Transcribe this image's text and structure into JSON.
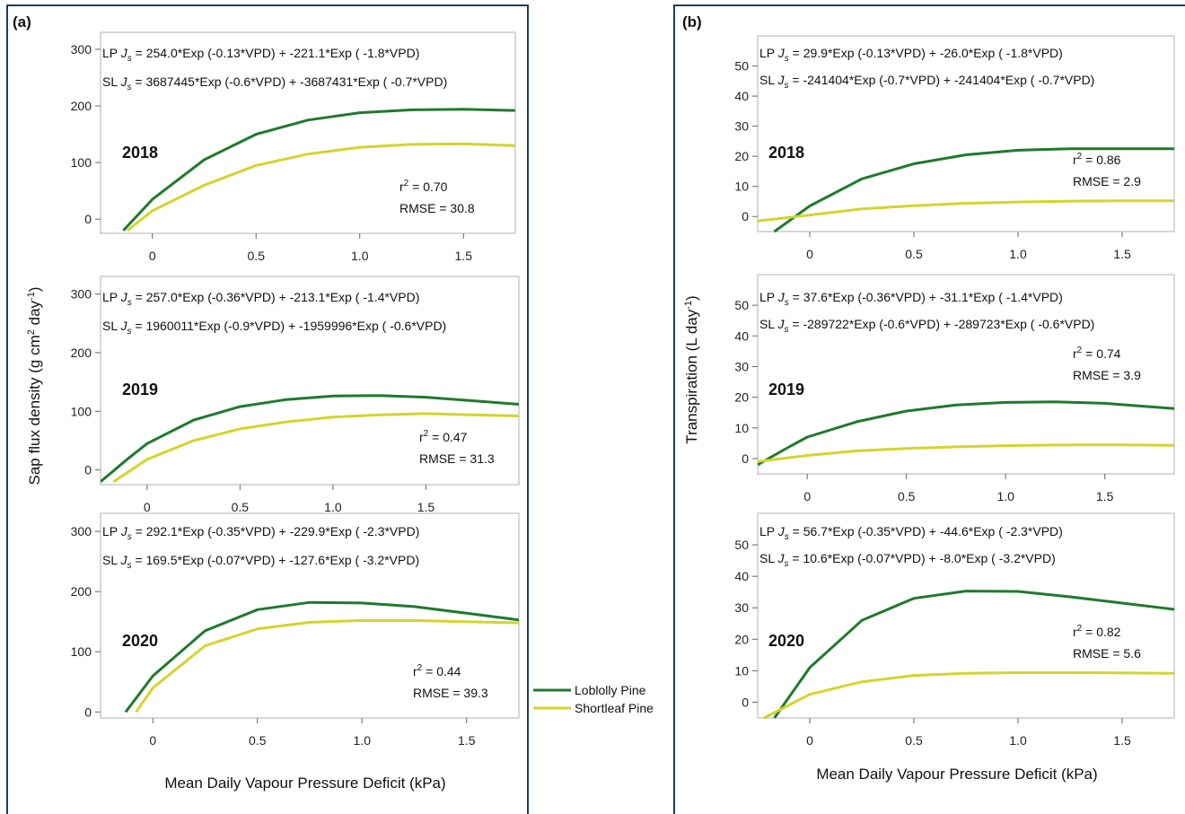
{
  "colors": {
    "loblolly": "#1f7a2e",
    "shortleaf": "#d4d42c",
    "frame": "#1e3a5f",
    "plot_border": "#b0b0b0"
  },
  "legend": {
    "loblolly": "Loblolly Pine",
    "shortleaf": "Shortleaf Pine"
  },
  "panels": [
    {
      "label": "(a)",
      "ylabel_main": "Sap flux density (g cm",
      "ylabel_sup1": "2",
      "ylabel_mid": " day",
      "ylabel_sup2": "-1",
      "ylabel_end": ")",
      "xlabel": "Mean Daily Vapour Pressure Deficit (kPa)"
    },
    {
      "label": "(b)",
      "ylabel_main": "Transpiration (L day",
      "ylabel_sup1": "-1",
      "ylabel_end": ")",
      "xlabel": "Mean Daily Vapour Pressure Deficit (kPa)"
    }
  ],
  "chart_data": [
    {
      "type": "line",
      "panel": "a",
      "year": "2018",
      "xlim": [
        -0.25,
        1.75
      ],
      "ylim": [
        -25,
        330
      ],
      "xticks": [
        "0",
        "0.5",
        "1.0",
        "1.5"
      ],
      "yticks": [
        "0",
        "100",
        "200",
        "300"
      ],
      "equations": {
        "lp": {
          "prefix": "LP ",
          "var": "J",
          "sub": "s",
          "rest": " = 254.0*Exp (-0.13*VPD) + -221.1*Exp ( -1.8*VPD)"
        },
        "sl": {
          "prefix": "SL ",
          "var": "J",
          "sub": "s",
          "rest": " = 3687445*Exp (-0.6*VPD) + -3687431*Exp ( -0.7*VPD)"
        }
      },
      "r2": "= 0.70",
      "rmse": "RMSE = 30.8",
      "series": [
        {
          "name": "Loblolly Pine",
          "x": [
            -0.14,
            0,
            0.25,
            0.5,
            0.75,
            1.0,
            1.25,
            1.5,
            1.75
          ],
          "y": [
            -20,
            35,
            105,
            150,
            175,
            188,
            193,
            194,
            192
          ]
        },
        {
          "name": "Shortleaf Pine",
          "x": [
            -0.12,
            0,
            0.25,
            0.5,
            0.75,
            1.0,
            1.25,
            1.5,
            1.75
          ],
          "y": [
            -20,
            15,
            60,
            95,
            115,
            127,
            132,
            133,
            130
          ]
        }
      ]
    },
    {
      "type": "line",
      "panel": "a",
      "year": "2019",
      "xlim": [
        -0.25,
        2.0
      ],
      "ylim": [
        -25,
        330
      ],
      "xticks": [
        "0",
        "0.5",
        "1.0",
        "1.5"
      ],
      "yticks": [
        "0",
        "100",
        "200",
        "300"
      ],
      "equations": {
        "lp": {
          "prefix": "LP ",
          "var": "J",
          "sub": "s",
          "rest": " = 257.0*Exp (-0.36*VPD) + -213.1*Exp ( -1.4*VPD)"
        },
        "sl": {
          "prefix": "SL ",
          "var": "J",
          "sub": "s",
          "rest": " = 1960011*Exp (-0.9*VPD) + -1959996*Exp ( -0.6*VPD)"
        }
      },
      "r2": "= 0.47",
      "rmse": "RMSE = 31.3",
      "series": [
        {
          "name": "Loblolly Pine",
          "x": [
            -0.25,
            -0.1,
            0,
            0.25,
            0.5,
            0.75,
            1.0,
            1.25,
            1.5,
            1.75,
            2.0
          ],
          "y": [
            -20,
            20,
            45,
            85,
            108,
            120,
            126,
            127,
            124,
            118,
            112
          ]
        },
        {
          "name": "Shortleaf Pine",
          "x": [
            -0.18,
            0,
            0.25,
            0.5,
            0.75,
            1.0,
            1.25,
            1.5,
            1.75,
            2.0
          ],
          "y": [
            -20,
            18,
            50,
            70,
            82,
            90,
            94,
            96,
            94,
            92
          ]
        }
      ]
    },
    {
      "type": "line",
      "panel": "a",
      "year": "2020",
      "xlim": [
        -0.25,
        1.75
      ],
      "ylim": [
        -10,
        330
      ],
      "xticks": [
        "0",
        "0.5",
        "1.0",
        "1.5"
      ],
      "yticks": [
        "0",
        "100",
        "200",
        "300"
      ],
      "equations": {
        "lp": {
          "prefix": "LP ",
          "var": "J",
          "sub": "s",
          "rest": " = 292.1*Exp (-0.35*VPD) + -229.9*Exp ( -2.3*VPD)"
        },
        "sl": {
          "prefix": "SL ",
          "var": "J",
          "sub": "s",
          "rest": " = 169.5*Exp (-0.07*VPD) + -127.6*Exp ( -3.2*VPD)"
        }
      },
      "r2": "= 0.44",
      "rmse": "RMSE = 39.3",
      "series": [
        {
          "name": "Loblolly Pine",
          "x": [
            -0.13,
            0,
            0.25,
            0.5,
            0.75,
            1.0,
            1.25,
            1.5,
            1.75
          ],
          "y": [
            0,
            60,
            135,
            170,
            182,
            181,
            175,
            164,
            153
          ]
        },
        {
          "name": "Shortleaf Pine",
          "x": [
            -0.08,
            0,
            0.25,
            0.5,
            0.75,
            1.0,
            1.25,
            1.5,
            1.75
          ],
          "y": [
            0,
            40,
            110,
            138,
            149,
            152,
            152,
            150,
            148
          ]
        }
      ]
    },
    {
      "type": "line",
      "panel": "b",
      "year": "2018",
      "xlim": [
        -0.25,
        1.75
      ],
      "ylim": [
        -5,
        60
      ],
      "xticks": [
        "0",
        "0.5",
        "1.0",
        "1.5"
      ],
      "yticks": [
        "0",
        "10",
        "20",
        "30",
        "40",
        "50"
      ],
      "equations": {
        "lp": {
          "prefix": "LP ",
          "var": "J",
          "sub": "s",
          "rest": " = 29.9*Exp (-0.13*VPD) + -26.0*Exp ( -1.8*VPD)"
        },
        "sl": {
          "prefix": "SL ",
          "var": "J",
          "sub": "s",
          "rest": " = -241404*Exp (-0.7*VPD) + -241404*Exp ( -0.7*VPD)"
        }
      },
      "r2": "= 0.86",
      "rmse": "RMSE = 2.9",
      "series": [
        {
          "name": "Loblolly Pine",
          "x": [
            -0.17,
            0,
            0.25,
            0.5,
            0.75,
            1.0,
            1.25,
            1.5,
            1.75
          ],
          "y": [
            -5,
            3.5,
            12.5,
            17.5,
            20.5,
            22,
            22.5,
            22.5,
            22.5
          ]
        },
        {
          "name": "Shortleaf Pine",
          "x": [
            -0.25,
            0,
            0.25,
            0.5,
            0.75,
            1.0,
            1.25,
            1.5,
            1.75
          ],
          "y": [
            -1.5,
            0.5,
            2.5,
            3.6,
            4.4,
            4.8,
            5.1,
            5.2,
            5.2
          ]
        }
      ]
    },
    {
      "type": "line",
      "panel": "b",
      "year": "2019",
      "xlim": [
        -0.25,
        1.85
      ],
      "ylim": [
        -5,
        60
      ],
      "xticks": [
        "0",
        "0.5",
        "1.0",
        "1.5"
      ],
      "yticks": [
        "0",
        "10",
        "20",
        "30",
        "40",
        "50"
      ],
      "equations": {
        "lp": {
          "prefix": "LP ",
          "var": "J",
          "sub": "s",
          "rest": " = 37.6*Exp (-0.36*VPD) + -31.1*Exp ( -1.4*VPD)"
        },
        "sl": {
          "prefix": "SL ",
          "var": "J",
          "sub": "s",
          "rest": " = -289722*Exp (-0.6*VPD) + -289723*Exp ( -0.6*VPD)"
        }
      },
      "r2": "= 0.74",
      "rmse": "RMSE = 3.9",
      "series": [
        {
          "name": "Loblolly Pine",
          "x": [
            -0.25,
            -0.1,
            0,
            0.25,
            0.5,
            0.75,
            1.0,
            1.25,
            1.5,
            1.85
          ],
          "y": [
            -2,
            3.5,
            7,
            12,
            15.5,
            17.5,
            18.3,
            18.5,
            18,
            16.3
          ]
        },
        {
          "name": "Shortleaf Pine",
          "x": [
            -0.25,
            0,
            0.25,
            0.5,
            0.75,
            1.0,
            1.25,
            1.5,
            1.85
          ],
          "y": [
            -1,
            1,
            2.5,
            3.3,
            3.8,
            4.2,
            4.4,
            4.5,
            4.3
          ]
        }
      ]
    },
    {
      "type": "line",
      "panel": "b",
      "year": "2020",
      "xlim": [
        -0.25,
        1.75
      ],
      "ylim": [
        -5,
        60
      ],
      "xticks": [
        "0",
        "0.5",
        "1.0",
        "1.5"
      ],
      "yticks": [
        "0",
        "10",
        "20",
        "30",
        "40",
        "50"
      ],
      "equations": {
        "lp": {
          "prefix": "LP ",
          "var": "J",
          "sub": "s",
          "rest": " = 56.7*Exp (-0.35*VPD) + -44.6*Exp ( -2.3*VPD)"
        },
        "sl": {
          "prefix": "SL ",
          "var": "J",
          "sub": "s",
          "rest": " = 10.6*Exp (-0.07*VPD) + -8.0*Exp ( -3.2*VPD)"
        }
      },
      "r2": "= 0.82",
      "rmse": "RMSE = 5.6",
      "series": [
        {
          "name": "Loblolly Pine",
          "x": [
            -0.17,
            0,
            0.25,
            0.5,
            0.75,
            1.0,
            1.25,
            1.5,
            1.75
          ],
          "y": [
            -5,
            11,
            26,
            33,
            35.3,
            35.2,
            33.5,
            31.5,
            29.5
          ]
        },
        {
          "name": "Shortleaf Pine",
          "x": [
            -0.22,
            0,
            0.25,
            0.5,
            0.75,
            1.0,
            1.25,
            1.5,
            1.75
          ],
          "y": [
            -5,
            2.5,
            6.5,
            8.5,
            9.2,
            9.4,
            9.4,
            9.3,
            9.2
          ]
        }
      ]
    }
  ]
}
